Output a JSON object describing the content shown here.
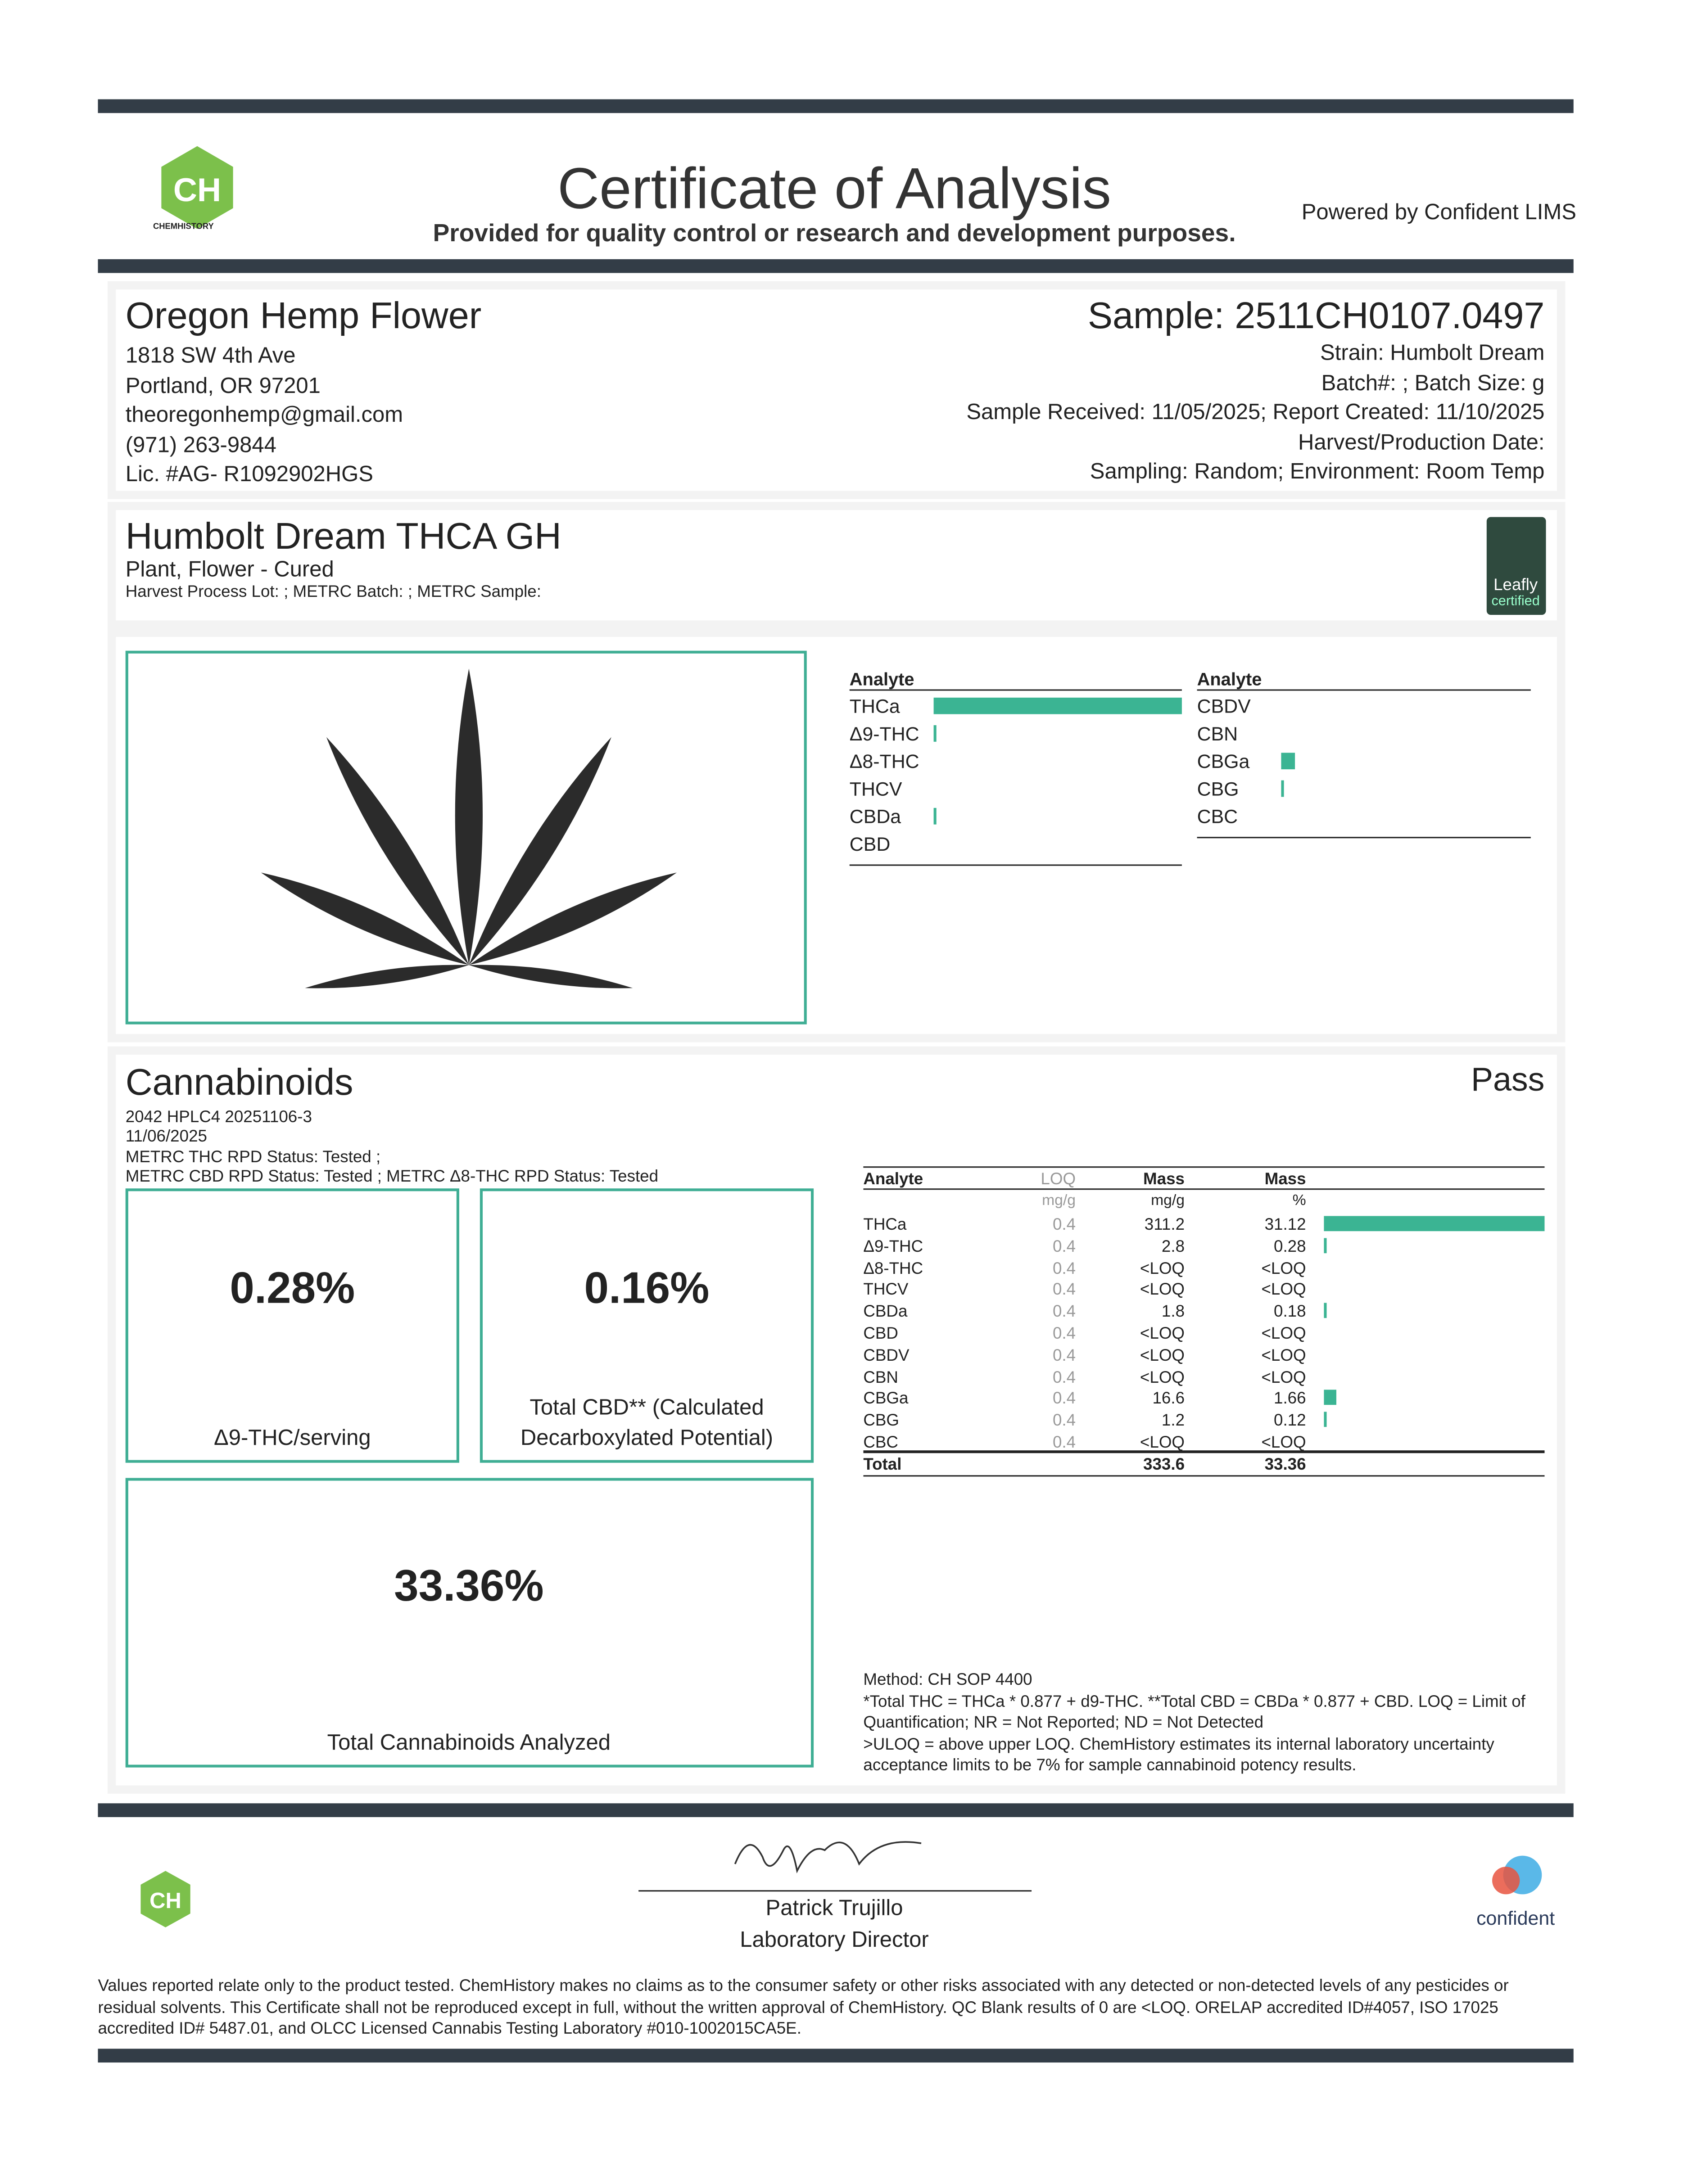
{
  "header": {
    "title": "Certificate of Analysis",
    "subtitle": "Provided for quality control or research and development purposes.",
    "powered": "Powered by Confident LIMS",
    "logo_text": "CHEMHISTORY"
  },
  "client": {
    "name": "Oregon Hemp Flower",
    "lines": [
      "1818 SW 4th Ave",
      "Portland, OR 97201",
      "theoregonhemp@gmail.com",
      "(971) 263-9844",
      "Lic. #AG- R1092902HGS"
    ]
  },
  "sample": {
    "id": "Sample: 2511CH0107.0497",
    "lines": [
      "Strain: Humbolt Dream",
      "Batch#: ; Batch Size:  g",
      "Sample Received: 11/05/2025; Report Created: 11/10/2025",
      "Harvest/Production Date: ",
      "Sampling: Random; Environment: Room Temp"
    ]
  },
  "product": {
    "name": "Humbolt Dream THCA GH",
    "type": "Plant, Flower - Cured",
    "lot": "Harvest Process Lot: ; METRC Batch: ; METRC Sample:",
    "badge": "Leafly",
    "badge_sub": "certified"
  },
  "overview": {
    "header": "Analyte",
    "left": [
      "THCa",
      "Δ9-THC",
      "Δ8-THC",
      "THCV",
      "CBDa",
      "CBD"
    ],
    "right": [
      "CBDV",
      "CBN",
      "CBGa",
      "CBG",
      "CBC"
    ]
  },
  "cannabinoids": {
    "title": "Cannabinoids",
    "status": "Pass",
    "info": [
      "2042 HPLC4 20251106-3",
      "11/06/2025",
      "METRC THC RPD Status: Tested ;",
      "METRC CBD RPD Status: Tested ; METRC Δ8-THC RPD Status: Tested"
    ],
    "boxes": [
      {
        "value": "0.28%",
        "label": "Δ9-THC/serving"
      },
      {
        "value": "0.16%",
        "label": "Total CBD** (Calculated",
        "label2": "Decarboxylated Potential)"
      },
      {
        "value": "33.36%",
        "label": "Total Cannabinoids Analyzed"
      }
    ],
    "table": {
      "columns": [
        "Analyte",
        "LOQ",
        "Mass",
        "Mass"
      ],
      "units": [
        "mg/g",
        "mg/g",
        "%"
      ],
      "rows": [
        [
          "THCa",
          "0.4",
          "311.2",
          "31.12"
        ],
        [
          "Δ9-THC",
          "0.4",
          "2.8",
          "0.28"
        ],
        [
          "Δ8-THC",
          "0.4",
          "<LOQ",
          "<LOQ"
        ],
        [
          "THCV",
          "0.4",
          "<LOQ",
          "<LOQ"
        ],
        [
          "CBDa",
          "0.4",
          "1.8",
          "0.18"
        ],
        [
          "CBD",
          "0.4",
          "<LOQ",
          "<LOQ"
        ],
        [
          "CBDV",
          "0.4",
          "<LOQ",
          "<LOQ"
        ],
        [
          "CBN",
          "0.4",
          "<LOQ",
          "<LOQ"
        ],
        [
          "CBGa",
          "0.4",
          "16.6",
          "1.66"
        ],
        [
          "CBG",
          "0.4",
          "1.2",
          "0.12"
        ],
        [
          "CBC",
          "0.4",
          "<LOQ",
          "<LOQ"
        ]
      ],
      "total": [
        "Total",
        "333.6",
        "33.36"
      ]
    },
    "notes": [
      "Method: CH SOP 4400",
      "*Total THC = THCa * 0.877 + d9-THC. **Total CBD = CBDa * 0.877 + CBD. LOQ = Limit of",
      "Quantification; NR = Not Reported; ND = Not Detected",
      ">ULOQ = above upper LOQ. ChemHistory estimates its internal laboratory uncertainty",
      "acceptance limits to be 7% for sample cannabinoid potency results."
    ]
  },
  "signature": {
    "name": "Patrick Trujillo",
    "role": "Laboratory Director"
  },
  "footer": {
    "brand": "confident",
    "disclaimer": [
      "Values reported relate only to the product tested. ChemHistory makes no claims as to the consumer safety or other risks associated with any detected or non-detected levels of any pesticides or",
      "residual solvents. This Certificate shall not be reproduced except in full, without the written approval of ChemHistory. QC Blank results of 0 are <LOQ.  ORELAP accredited ID#4057, ISO 17025",
      "accredited ID# 5487.01, and OLCC Licensed Cannabis Testing Laboratory #010-1002015CA5E."
    ]
  }
}
